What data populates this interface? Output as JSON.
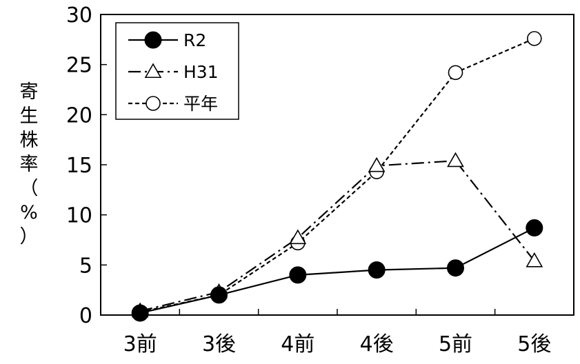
{
  "chart_data": {
    "type": "line",
    "categories": [
      "3前",
      "3後",
      "4前",
      "4後",
      "5前",
      "5後"
    ],
    "ylabel": "寄生株率（%）",
    "ylim": [
      0,
      30
    ],
    "yticks": [
      0,
      5,
      10,
      15,
      20,
      25,
      30
    ],
    "grid": false,
    "legend_position": "top-left",
    "series": [
      {
        "name": "R2",
        "values": [
          0.2,
          2.0,
          4.0,
          4.5,
          4.7,
          8.7
        ],
        "marker": "filled-circle",
        "line": "solid"
      },
      {
        "name": "H31",
        "values": [
          0.4,
          2.3,
          7.7,
          14.9,
          15.4,
          5.4
        ],
        "marker": "open-triangle",
        "line": "dash-dot"
      },
      {
        "name": "平年",
        "values": [
          0.3,
          2.0,
          7.2,
          14.3,
          24.2,
          27.6
        ],
        "marker": "open-circle",
        "line": "dashed"
      }
    ]
  }
}
